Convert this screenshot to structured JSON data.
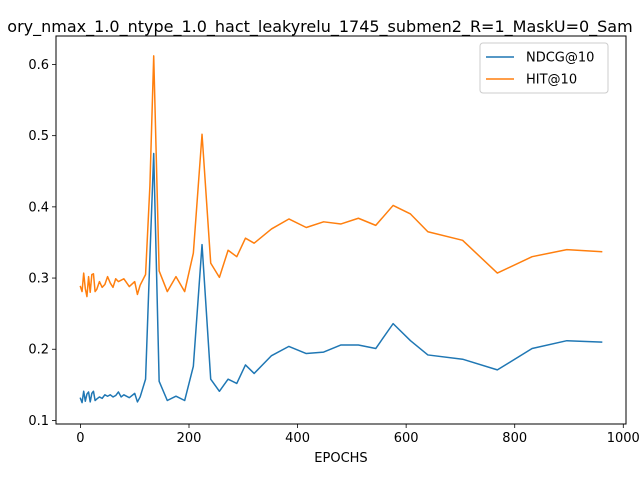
{
  "chart_data": {
    "type": "line",
    "title": "ory_nmax_1.0_ntype_1.0_hact_leakyrelu_1745_submen2_R=1_MaskU=0_Sam",
    "xlabel": "EPOCHS",
    "ylabel": "",
    "xlim": [
      -45,
      1005
    ],
    "ylim": [
      0.095,
      0.64
    ],
    "xticks": [
      0,
      200,
      400,
      600,
      800,
      1000
    ],
    "yticks": [
      0.1,
      0.2,
      0.3,
      0.4,
      0.5,
      0.6
    ],
    "grid": false,
    "legend": "top-right",
    "series": [
      {
        "name": "NDCG@10",
        "color": "#1f77b4",
        "x": [
          0,
          3,
          6,
          9,
          12,
          15,
          18,
          21,
          24,
          27,
          30,
          35,
          40,
          45,
          50,
          55,
          60,
          65,
          70,
          75,
          80,
          90,
          100,
          105,
          110,
          120,
          128,
          135,
          145,
          160,
          176,
          192,
          208,
          224,
          240,
          256,
          272,
          288,
          304,
          320,
          352,
          384,
          416,
          448,
          480,
          512,
          544,
          576,
          608,
          640,
          704,
          768,
          832,
          896,
          960
        ],
        "y": [
          0.131,
          0.125,
          0.141,
          0.127,
          0.137,
          0.14,
          0.126,
          0.138,
          0.141,
          0.128,
          0.13,
          0.133,
          0.131,
          0.136,
          0.134,
          0.136,
          0.133,
          0.135,
          0.14,
          0.133,
          0.136,
          0.132,
          0.138,
          0.126,
          0.133,
          0.158,
          0.33,
          0.475,
          0.155,
          0.128,
          0.134,
          0.128,
          0.176,
          0.347,
          0.158,
          0.141,
          0.158,
          0.152,
          0.178,
          0.166,
          0.191,
          0.204,
          0.194,
          0.196,
          0.206,
          0.206,
          0.201,
          0.236,
          0.212,
          0.192,
          0.186,
          0.171,
          0.201,
          0.212,
          0.21
        ]
      },
      {
        "name": "HIT@10",
        "color": "#ff7f0e",
        "x": [
          0,
          3,
          6,
          9,
          12,
          15,
          18,
          21,
          24,
          27,
          30,
          35,
          40,
          45,
          50,
          55,
          60,
          65,
          70,
          75,
          80,
          90,
          100,
          105,
          110,
          120,
          128,
          135,
          145,
          160,
          176,
          192,
          208,
          224,
          240,
          256,
          272,
          288,
          304,
          320,
          352,
          384,
          416,
          448,
          480,
          512,
          544,
          576,
          608,
          640,
          704,
          768,
          832,
          896,
          960
        ],
        "y": [
          0.288,
          0.281,
          0.307,
          0.285,
          0.274,
          0.302,
          0.28,
          0.305,
          0.306,
          0.281,
          0.284,
          0.295,
          0.287,
          0.291,
          0.302,
          0.293,
          0.287,
          0.299,
          0.295,
          0.297,
          0.299,
          0.288,
          0.295,
          0.277,
          0.29,
          0.305,
          0.43,
          0.612,
          0.31,
          0.281,
          0.302,
          0.281,
          0.335,
          0.502,
          0.321,
          0.301,
          0.339,
          0.33,
          0.356,
          0.349,
          0.369,
          0.383,
          0.371,
          0.379,
          0.376,
          0.384,
          0.374,
          0.402,
          0.39,
          0.365,
          0.353,
          0.307,
          0.33,
          0.34,
          0.337
        ]
      }
    ]
  }
}
